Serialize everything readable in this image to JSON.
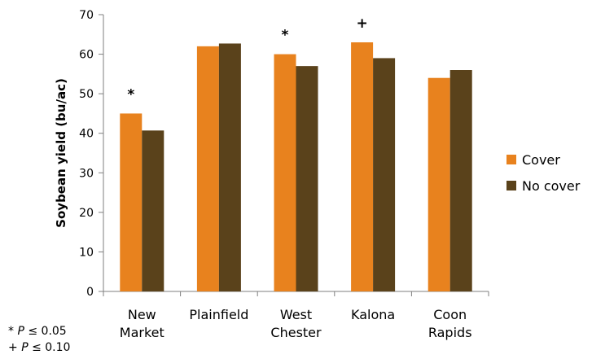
{
  "chart_data": {
    "type": "bar",
    "title": "",
    "xlabel": "",
    "ylabel": "Soybean yield (bu/ac)",
    "ylim": [
      0,
      70
    ],
    "yticks": [
      "0",
      "10",
      "20",
      "30",
      "40",
      "50",
      "60",
      "70"
    ],
    "grid": false,
    "legend_position": "right",
    "categories": [
      [
        "New",
        "Market"
      ],
      [
        "Plainfield"
      ],
      [
        "West",
        "Chester"
      ],
      [
        "Kalona"
      ],
      [
        "Coon",
        "Rapids"
      ]
    ],
    "series": [
      {
        "name": "Cover",
        "color": "#E8821E",
        "values": [
          45,
          62,
          60,
          63,
          54
        ]
      },
      {
        "name": "No cover",
        "color": "#5A421B",
        "values": [
          40.7,
          62.7,
          57,
          59,
          56
        ]
      }
    ],
    "significance": [
      "*",
      "",
      "*",
      "+",
      ""
    ]
  },
  "footnotes": [
    {
      "symbol": "*",
      "italic": "P",
      "text": "≤ 0.05"
    },
    {
      "symbol": "+",
      "italic": "P",
      "text": "≤ 0.10"
    }
  ]
}
